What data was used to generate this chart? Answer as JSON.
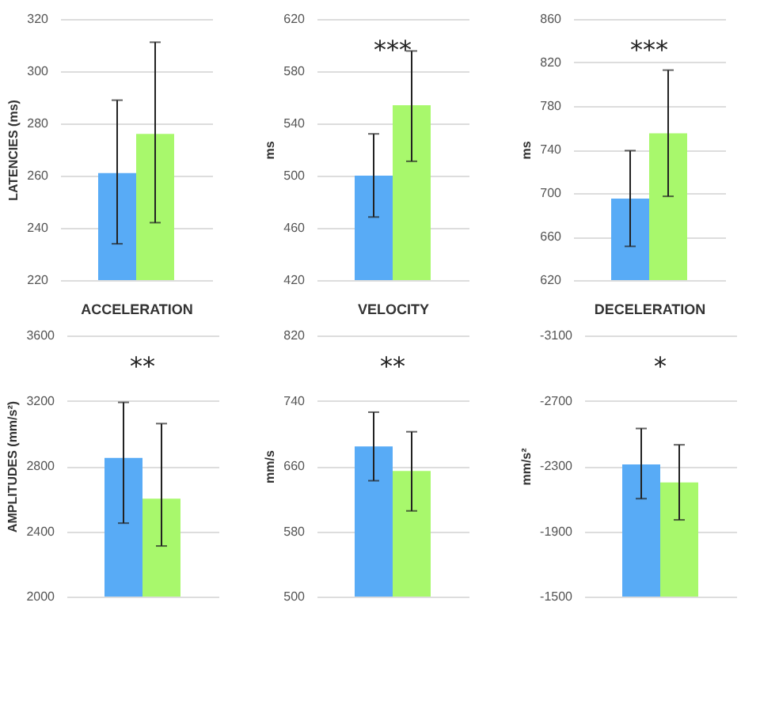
{
  "chart_data": [
    {
      "type": "bar",
      "categories": [
        null,
        null
      ],
      "values": [
        261,
        276
      ],
      "errors": [
        [
          233.9,
          288.9
        ],
        [
          242,
          311.1
        ]
      ],
      "colors": [
        "#58abf6",
        "#a8f86c"
      ],
      "xlabel": "ACCELERATION",
      "ylabel": "LATENCIES (ms)",
      "ylim": [
        220,
        320
      ],
      "yticks": [
        220,
        240,
        260,
        280,
        300,
        320
      ],
      "grid": "y"
    },
    {
      "type": "bar",
      "categories": [
        null,
        null
      ],
      "values": [
        500,
        554
      ],
      "errors": [
        [
          468.3,
          532
        ],
        [
          511,
          595.5
        ]
      ],
      "colors": [
        "#58abf6",
        "#a8f86c"
      ],
      "xlabel": "VELOCITY",
      "ylabel": "ms",
      "ylim": [
        420,
        620
      ],
      "yticks": [
        420,
        460,
        500,
        540,
        580,
        620
      ],
      "grid": "y",
      "annotations": [
        "***"
      ]
    },
    {
      "type": "bar",
      "categories": [
        null,
        null
      ],
      "values": [
        695,
        755
      ],
      "errors": [
        [
          651,
          739
        ],
        [
          697,
          813
        ]
      ],
      "colors": [
        "#58abf6",
        "#a8f86c"
      ],
      "xlabel": "DECELERATION",
      "ylabel": "ms",
      "ylim": [
        620,
        860
      ],
      "yticks": [
        620,
        660,
        700,
        740,
        780,
        820,
        860
      ],
      "grid": "y",
      "annotations": [
        "***"
      ]
    },
    {
      "type": "bar",
      "categories": [
        null,
        null
      ],
      "values": [
        2850,
        2600
      ],
      "errors": [
        [
          2450,
          3190
        ],
        [
          2310,
          3060
        ]
      ],
      "colors": [
        "#58abf6",
        "#a8f86c"
      ],
      "ylabel": "AMPLITUDES  (mm/s²)",
      "ylim": [
        2000,
        3600
      ],
      "yticks": [
        2000,
        2400,
        2800,
        3200,
        3600
      ],
      "grid": "y",
      "annotations": [
        "**"
      ]
    },
    {
      "type": "bar",
      "categories": [
        null,
        null
      ],
      "values": [
        684,
        654
      ],
      "errors": [
        [
          642,
          726
        ],
        [
          605,
          702
        ]
      ],
      "colors": [
        "#58abf6",
        "#a8f86c"
      ],
      "ylabel": "mm/s",
      "ylim": [
        500,
        820
      ],
      "yticks": [
        500,
        580,
        660,
        740,
        820
      ],
      "grid": "y",
      "annotations": [
        "**"
      ]
    },
    {
      "type": "bar",
      "categories": [
        null,
        null
      ],
      "values": [
        -2310,
        -2200
      ],
      "errors": [
        [
          -2100,
          -2530
        ],
        [
          -1970,
          -2430
        ]
      ],
      "colors": [
        "#58abf6",
        "#a8f86c"
      ],
      "ylabel": "mm/s²",
      "ylim": [
        -1500,
        -3100
      ],
      "yticks": [
        -1500,
        -1900,
        -2300,
        -2700,
        -3100
      ],
      "grid": "y",
      "annotations": [
        "*"
      ]
    }
  ]
}
